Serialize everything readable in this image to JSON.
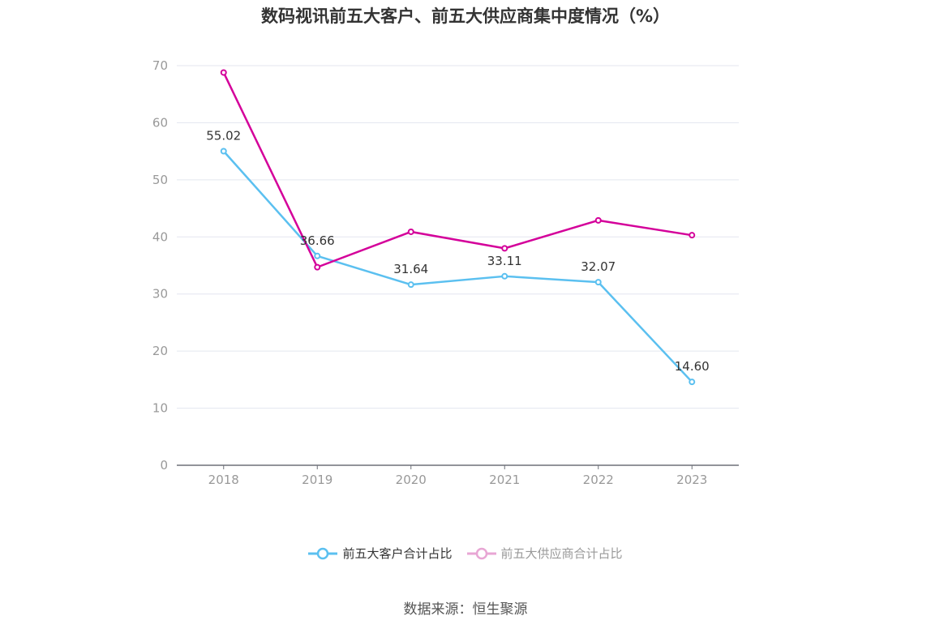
{
  "chart_data": {
    "type": "line",
    "title": "数码视讯前五大客户、前五大供应商集中度情况（%）",
    "x": [
      "2018",
      "2019",
      "2020",
      "2021",
      "2022",
      "2023"
    ],
    "ylim": [
      0,
      70
    ],
    "yticks": [
      0,
      10,
      20,
      30,
      40,
      50,
      60,
      70
    ],
    "grid": true,
    "legend_position": "bottom",
    "series": [
      {
        "name": "前五大客户合计占比",
        "values": [
          55.02,
          36.66,
          31.64,
          33.11,
          32.07,
          14.6
        ],
        "labels": [
          "55.02",
          "36.66",
          "31.64",
          "33.11",
          "32.07",
          "14.60"
        ],
        "color": "#5bc0f0"
      },
      {
        "name": "前五大供应商合计占比",
        "values": [
          68.8,
          34.7,
          40.9,
          38.0,
          42.9,
          40.3
        ],
        "color": "#d4009a"
      }
    ]
  },
  "legend": {
    "item1": "前五大客户合计占比",
    "item2": "前五大供应商合计占比",
    "item2_color": "#e8a6d4"
  },
  "source": "数据来源：恒生聚源"
}
